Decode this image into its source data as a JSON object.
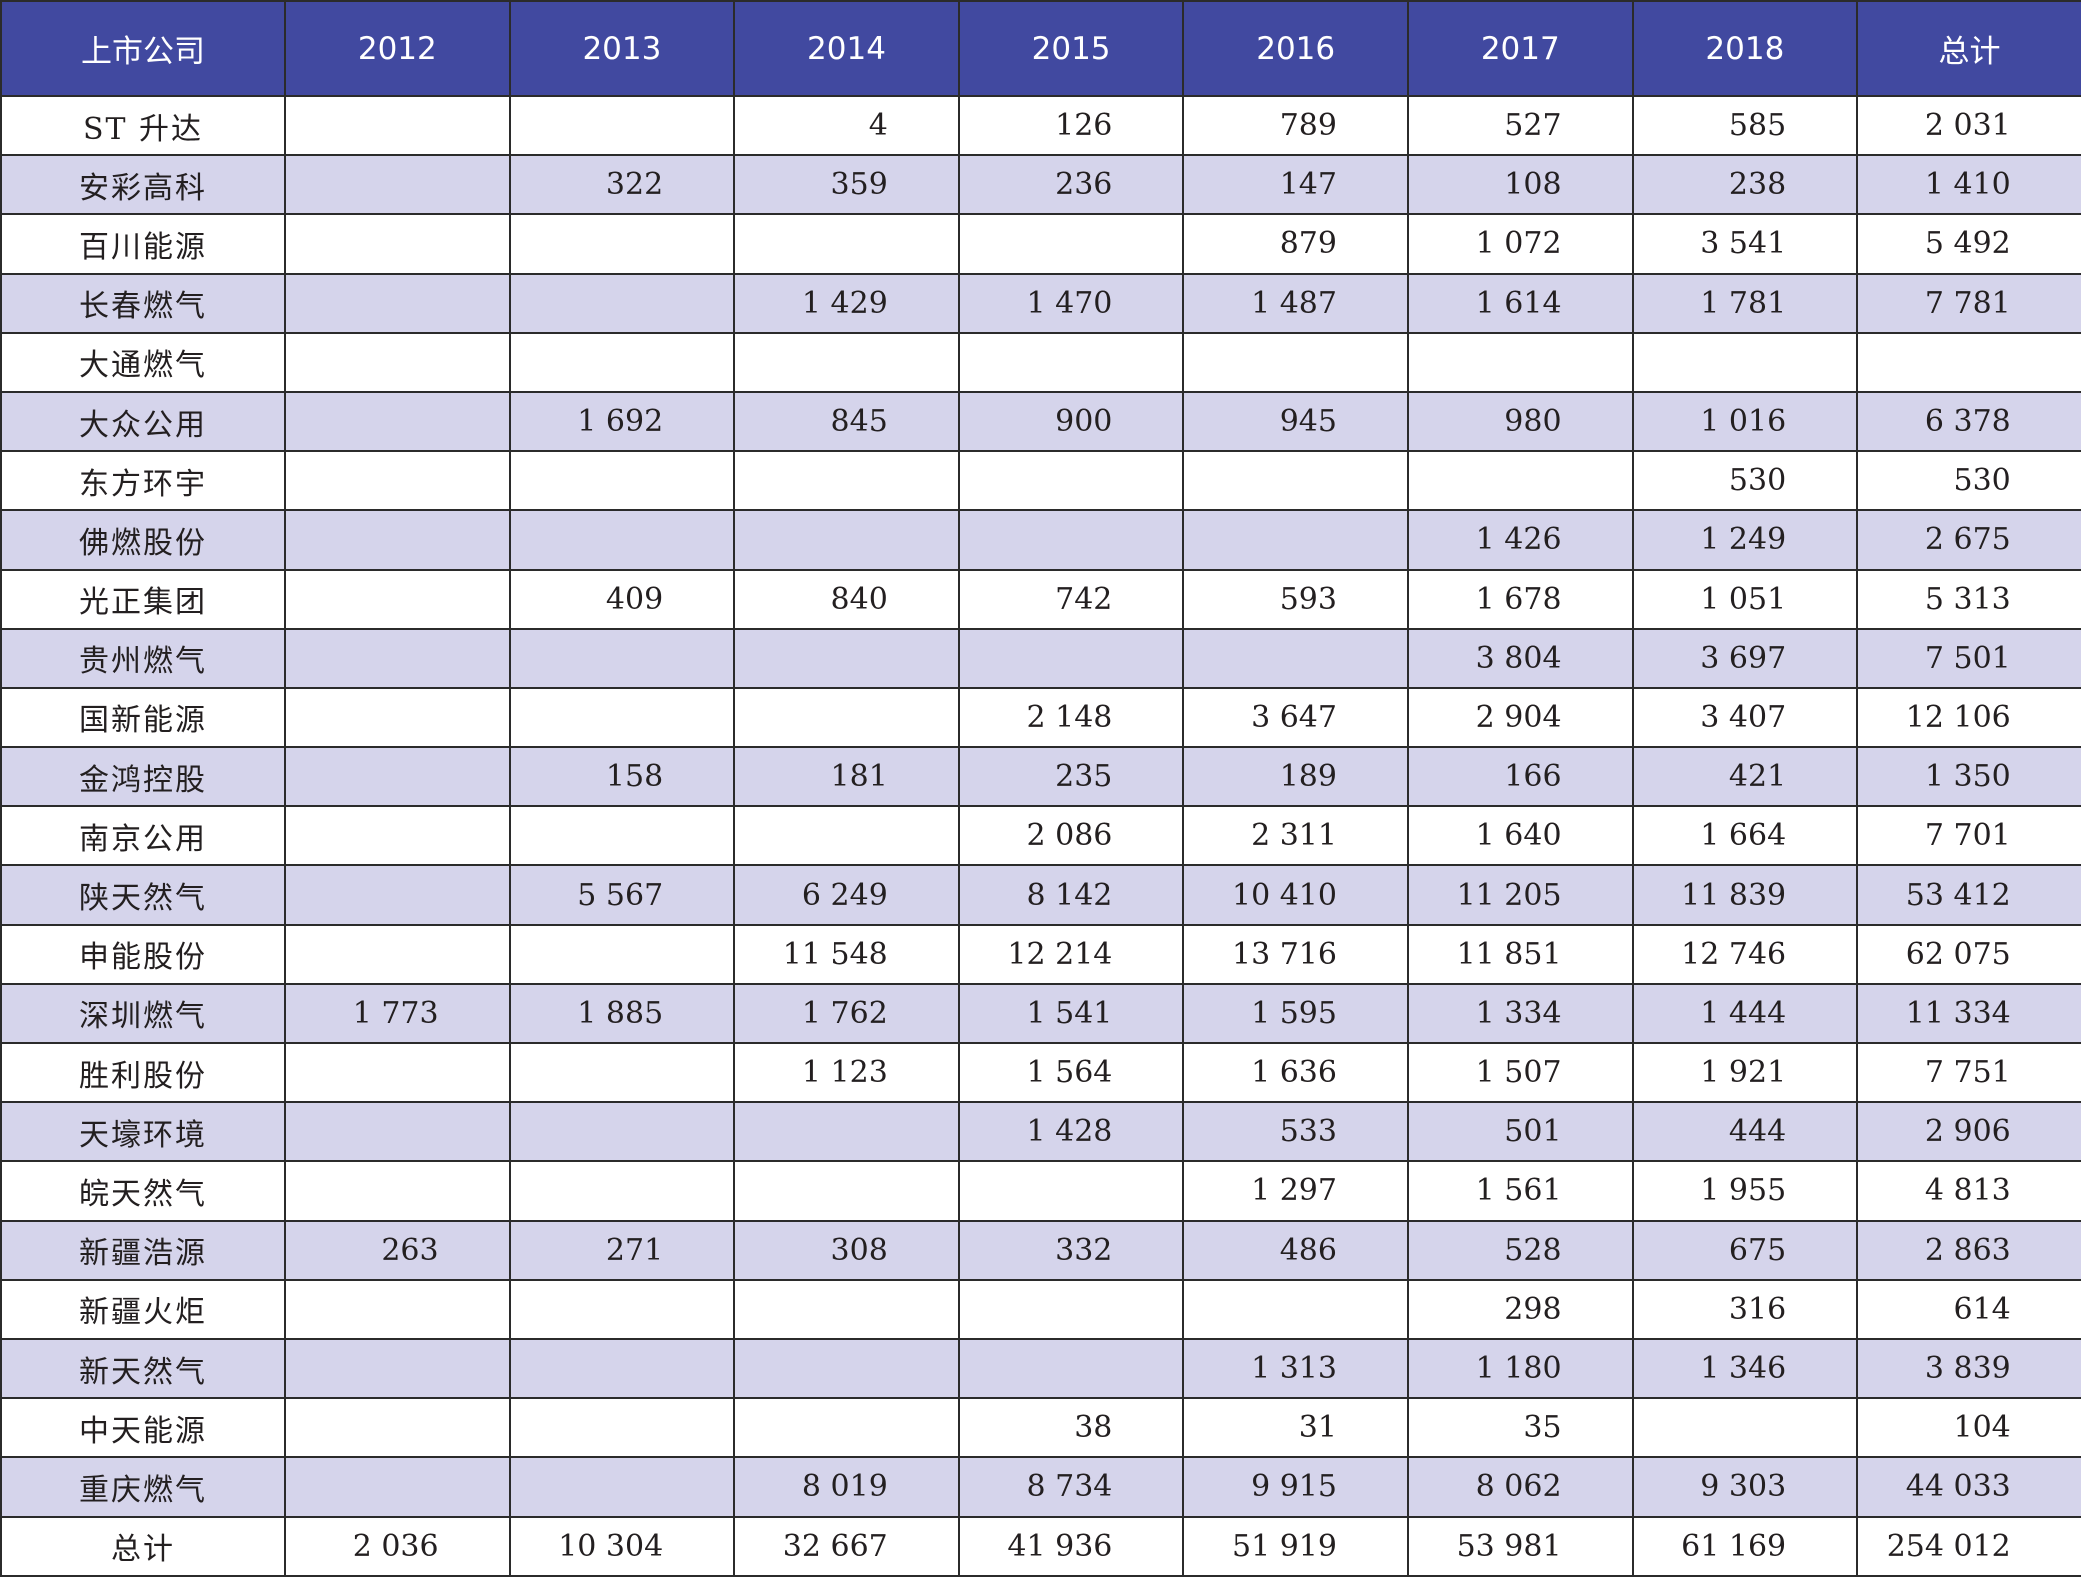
{
  "table": {
    "headers": [
      "上市公司",
      "2012",
      "2013",
      "2014",
      "2015",
      "2016",
      "2017",
      "2018",
      "总计"
    ],
    "rows": [
      {
        "name": "ST 升达",
        "values": [
          "",
          "",
          "4",
          "126",
          "789",
          "527",
          "585",
          "2 031"
        ]
      },
      {
        "name": "安彩高科",
        "values": [
          "",
          "322",
          "359",
          "236",
          "147",
          "108",
          "238",
          "1 410"
        ]
      },
      {
        "name": "百川能源",
        "values": [
          "",
          "",
          "",
          "",
          "879",
          "1 072",
          "3 541",
          "5 492"
        ]
      },
      {
        "name": "长春燃气",
        "values": [
          "",
          "",
          "1 429",
          "1 470",
          "1 487",
          "1 614",
          "1 781",
          "7 781"
        ]
      },
      {
        "name": "大通燃气",
        "values": [
          "",
          "",
          "",
          "",
          "",
          "",
          "",
          ""
        ]
      },
      {
        "name": "大众公用",
        "values": [
          "",
          "1 692",
          "845",
          "900",
          "945",
          "980",
          "1 016",
          "6 378"
        ]
      },
      {
        "name": "东方环宇",
        "values": [
          "",
          "",
          "",
          "",
          "",
          "",
          "530",
          "530"
        ]
      },
      {
        "name": "佛燃股份",
        "values": [
          "",
          "",
          "",
          "",
          "",
          "1 426",
          "1 249",
          "2 675"
        ]
      },
      {
        "name": "光正集团",
        "values": [
          "",
          "409",
          "840",
          "742",
          "593",
          "1 678",
          "1 051",
          "5 313"
        ]
      },
      {
        "name": "贵州燃气",
        "values": [
          "",
          "",
          "",
          "",
          "",
          "3 804",
          "3 697",
          "7 501"
        ]
      },
      {
        "name": "国新能源",
        "values": [
          "",
          "",
          "",
          "2 148",
          "3 647",
          "2 904",
          "3 407",
          "12 106"
        ]
      },
      {
        "name": "金鸿控股",
        "values": [
          "",
          "158",
          "181",
          "235",
          "189",
          "166",
          "421",
          "1 350"
        ]
      },
      {
        "name": "南京公用",
        "values": [
          "",
          "",
          "",
          "2 086",
          "2 311",
          "1 640",
          "1 664",
          "7 701"
        ]
      },
      {
        "name": "陕天然气",
        "values": [
          "",
          "5 567",
          "6 249",
          "8 142",
          "10 410",
          "11 205",
          "11 839",
          "53 412"
        ]
      },
      {
        "name": "申能股份",
        "values": [
          "",
          "",
          "11 548",
          "12 214",
          "13 716",
          "11 851",
          "12 746",
          "62 075"
        ]
      },
      {
        "name": "深圳燃气",
        "values": [
          "1 773",
          "1 885",
          "1 762",
          "1 541",
          "1 595",
          "1 334",
          "1 444",
          "11 334"
        ]
      },
      {
        "name": "胜利股份",
        "values": [
          "",
          "",
          "1 123",
          "1 564",
          "1 636",
          "1 507",
          "1 921",
          "7 751"
        ]
      },
      {
        "name": "天壕环境",
        "values": [
          "",
          "",
          "",
          "1 428",
          "533",
          "501",
          "444",
          "2 906"
        ]
      },
      {
        "name": "皖天然气",
        "values": [
          "",
          "",
          "",
          "",
          "1 297",
          "1 561",
          "1 955",
          "4 813"
        ]
      },
      {
        "name": "新疆浩源",
        "values": [
          "263",
          "271",
          "308",
          "332",
          "486",
          "528",
          "675",
          "2 863"
        ]
      },
      {
        "name": "新疆火炬",
        "values": [
          "",
          "",
          "",
          "",
          "",
          "298",
          "316",
          "614"
        ]
      },
      {
        "name": "新天然气",
        "values": [
          "",
          "",
          "",
          "",
          "1 313",
          "1 180",
          "1 346",
          "3 839"
        ]
      },
      {
        "name": "中天能源",
        "values": [
          "",
          "",
          "",
          "38",
          "31",
          "35",
          "",
          "104"
        ]
      },
      {
        "name": "重庆燃气",
        "values": [
          "",
          "",
          "8 019",
          "8 734",
          "9 915",
          "8 062",
          "9 303",
          "44 033"
        ]
      },
      {
        "name": "总计",
        "values": [
          "2 036",
          "10 304",
          "32 667",
          "41 936",
          "51 919",
          "53 981",
          "61 169",
          "254 012"
        ]
      }
    ]
  },
  "colors": {
    "header_bg": "#4149a0",
    "header_text": "#ffffff",
    "shaded_row": "#d5d4eb",
    "plain_row": "#ffffff",
    "grid_line": "#2b2b2b"
  }
}
